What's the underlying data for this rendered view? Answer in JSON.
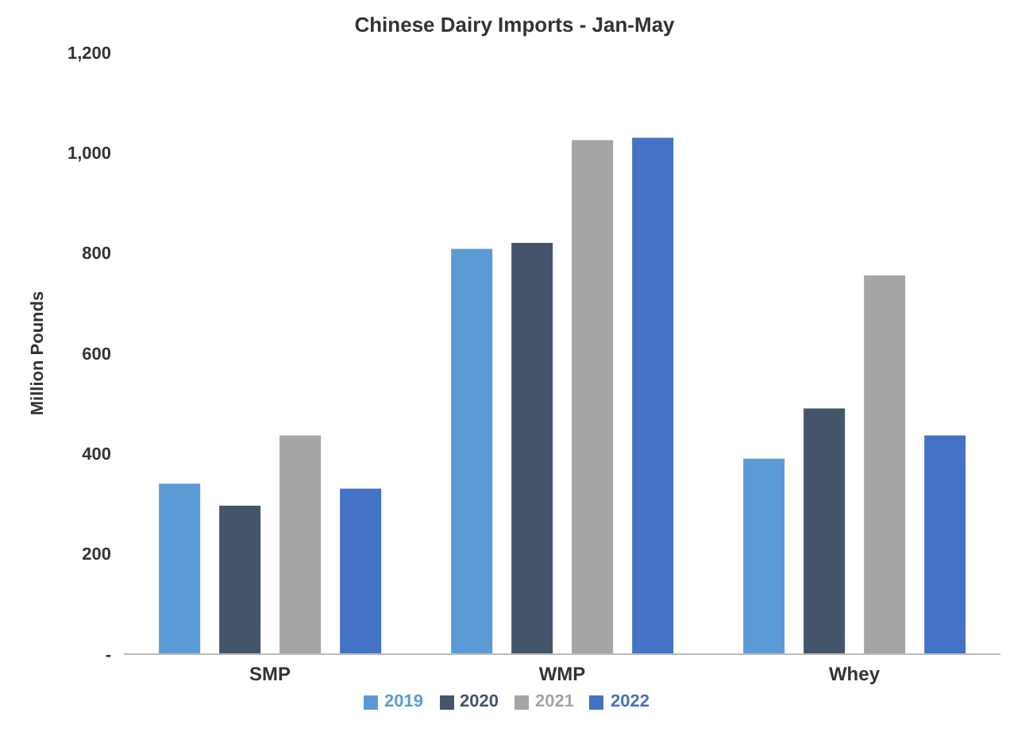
{
  "chart_data": {
    "type": "bar",
    "title": "Chinese Dairy Imports - Jan-May",
    "ylabel": "Million Pounds",
    "categories": [
      "SMP",
      "WMP",
      "Whey"
    ],
    "series": [
      {
        "name": "2019",
        "color": "#5b9bd5",
        "values": [
          340,
          808,
          390
        ]
      },
      {
        "name": "2020",
        "color": "#44546a",
        "values": [
          296,
          820,
          490
        ]
      },
      {
        "name": "2021",
        "color": "#a5a5a5",
        "values": [
          436,
          1025,
          755
        ]
      },
      {
        "name": "2022",
        "color": "#4472c4",
        "values": [
          330,
          1030,
          436
        ]
      }
    ],
    "ylim": [
      0,
      1200
    ],
    "yticks": [
      {
        "value": 0,
        "label": "-"
      },
      {
        "value": 200,
        "label": "200"
      },
      {
        "value": 400,
        "label": "400"
      },
      {
        "value": 600,
        "label": "600"
      },
      {
        "value": 800,
        "label": "800"
      },
      {
        "value": 1000,
        "label": "1,000"
      },
      {
        "value": 1200,
        "label": "1,200"
      }
    ],
    "grid": false,
    "legend": "bottom"
  }
}
